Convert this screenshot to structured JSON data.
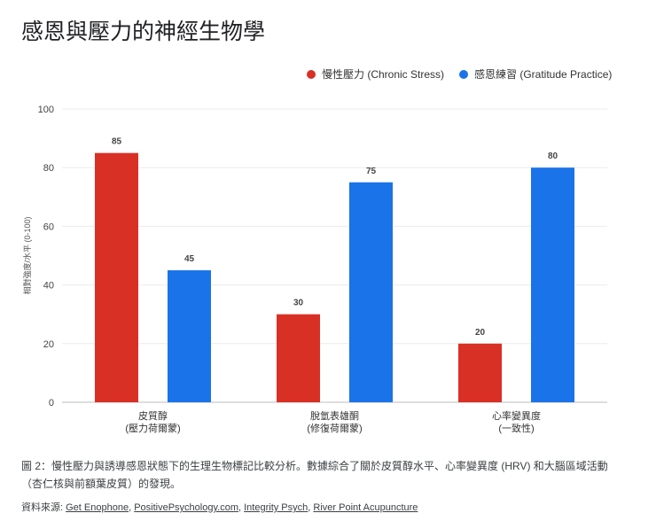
{
  "title": "感恩與壓力的神經生物學",
  "chart_data": {
    "type": "bar",
    "title": "",
    "ylabel": "相對強度/水平 (0-100)",
    "xlabel": "",
    "ylim": [
      0,
      100
    ],
    "yticks": [
      0,
      20,
      40,
      60,
      80,
      100
    ],
    "grid": true,
    "legend_position": "top-right",
    "categories": [
      [
        "皮質醇",
        "(壓力荷爾蒙)"
      ],
      [
        "脫氫表雄酮",
        "(修復荷爾蒙)"
      ],
      [
        "心率變異度",
        "(一致性)"
      ]
    ],
    "series": [
      {
        "name": "慢性壓力 (Chronic Stress)",
        "color": "#d93025",
        "values": [
          85,
          30,
          20
        ]
      },
      {
        "name": "感恩練習 (Gratitude Practice)",
        "color": "#1a73e8",
        "values": [
          45,
          75,
          80
        ]
      }
    ]
  },
  "caption": "圖 2：慢性壓力與誘導感恩狀態下的生理生物標記比較分析。數據綜合了關於皮質醇水平、心率變異度 (HRV) 和大腦區域活動（杏仁核與前額葉皮質）的發現。",
  "sources": {
    "label": "資料來源:",
    "links": [
      "Get Enophone",
      "PositivePsychology.com",
      "Integrity Psych",
      "River Point Acupuncture"
    ]
  }
}
